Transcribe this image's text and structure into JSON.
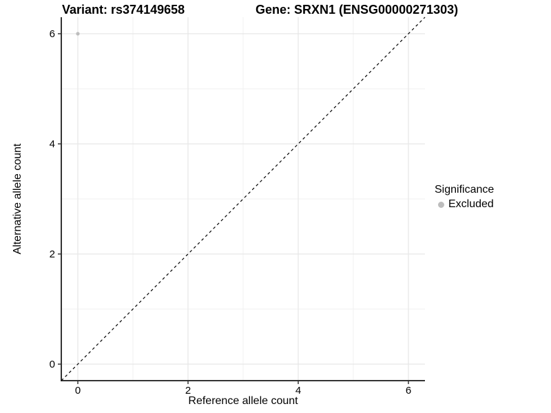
{
  "chart_data": {
    "type": "scatter",
    "title_left": "Variant: rs374149658",
    "title_right": "Gene: SRXN1 (ENSG00000271303)",
    "xlabel": "Reference allele count",
    "ylabel": "Alternative allele count",
    "xlim": [
      -0.3,
      6.3
    ],
    "ylim": [
      -0.3,
      6.3
    ],
    "x_ticks": [
      0,
      2,
      4,
      6
    ],
    "y_ticks": [
      0,
      2,
      4,
      6
    ],
    "x_minor_ticks": [
      1,
      3,
      5
    ],
    "y_minor_ticks": [
      1,
      3,
      5
    ],
    "grid": true,
    "identity_line": {
      "style": "dashed",
      "color": "#000000",
      "from": -0.3,
      "to": 6.3
    },
    "series": [
      {
        "name": "Excluded",
        "color": "#bdbdbd",
        "points": [
          {
            "x": 0,
            "y": 6
          }
        ]
      }
    ],
    "legend": {
      "title": "Significance",
      "position": "right",
      "entries": [
        {
          "label": "Excluded",
          "color": "#bdbdbd"
        }
      ]
    },
    "colors": {
      "grid_major": "#e7e7e7",
      "grid_minor": "#f1f1f1",
      "axis_line": "#333333",
      "tick_mark": "#333333",
      "text": "#000000",
      "background": "#ffffff"
    }
  }
}
